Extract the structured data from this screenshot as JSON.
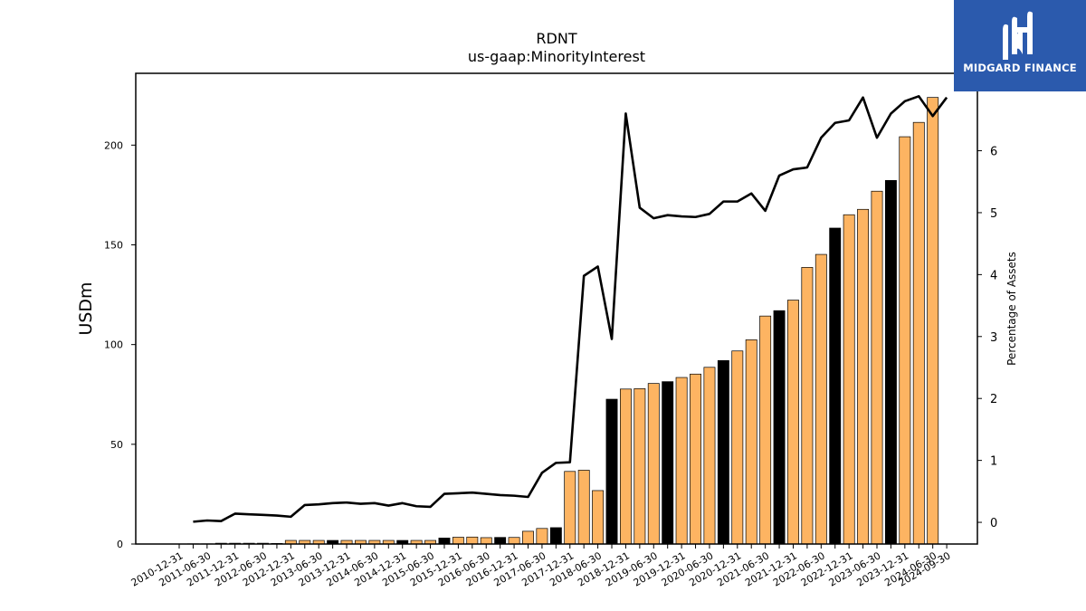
{
  "brand": {
    "name": "MIDGARD FINANCE",
    "logo_icon": "mf-monogram-icon",
    "background_color": "#2b5aad"
  },
  "chart_data": {
    "type": "bar",
    "title": "RDNT",
    "subtitle": "us-gaap:MinorityInterest",
    "ylabel": "USDm",
    "y2label": "Percentage of Assets",
    "ylim": [
      0,
      236
    ],
    "y2lim": [
      -0.35,
      7.25
    ],
    "yticks": [
      0,
      50,
      100,
      150,
      200
    ],
    "y2ticks": [
      0,
      1,
      2,
      3,
      4,
      5,
      6
    ],
    "bar_color": "#fdb462",
    "highlight_color": "#000000",
    "line_color": "#000000",
    "grid": false,
    "categories": [
      "2010-12-31",
      "2011-03-31",
      "2011-06-30",
      "2011-09-30",
      "2011-12-31",
      "2012-03-31",
      "2012-06-30",
      "2012-09-30",
      "2012-12-31",
      "2013-03-31",
      "2013-06-30",
      "2013-09-30",
      "2013-12-31",
      "2014-03-31",
      "2014-06-30",
      "2014-09-30",
      "2014-12-31",
      "2015-03-31",
      "2015-06-30",
      "2015-09-30",
      "2015-12-31",
      "2016-03-31",
      "2016-06-30",
      "2016-09-30",
      "2016-12-31",
      "2017-03-31",
      "2017-06-30",
      "2017-09-30",
      "2017-12-31",
      "2018-03-31",
      "2018-06-30",
      "2018-09-30",
      "2018-12-31",
      "2019-03-31",
      "2019-06-30",
      "2019-09-30",
      "2019-12-31",
      "2020-03-31",
      "2020-06-30",
      "2020-09-30",
      "2020-12-31",
      "2021-03-31",
      "2021-06-30",
      "2021-09-30",
      "2021-12-31",
      "2022-03-31",
      "2022-06-30",
      "2022-09-30",
      "2022-12-31",
      "2023-03-31",
      "2023-06-30",
      "2023-09-30",
      "2023-12-31",
      "2024-03-31",
      "2024-06-30",
      "2024-09-30"
    ],
    "tick_labels": [
      "2010-12-31",
      "",
      "2011-06-30",
      "",
      "2011-12-31",
      "",
      "2012-06-30",
      "",
      "2012-12-31",
      "",
      "2013-06-30",
      "",
      "2013-12-31",
      "",
      "2014-06-30",
      "",
      "2014-12-31",
      "",
      "2015-06-30",
      "",
      "2015-12-31",
      "",
      "2016-06-30",
      "",
      "2016-12-31",
      "",
      "2017-06-30",
      "",
      "2017-12-31",
      "",
      "2018-06-30",
      "",
      "2018-12-31",
      "",
      "2019-06-30",
      "",
      "2019-12-31",
      "",
      "2020-06-30",
      "",
      "2020-12-31",
      "",
      "2021-06-30",
      "",
      "2021-12-31",
      "",
      "2022-06-30",
      "",
      "2022-12-31",
      "",
      "2023-06-30",
      "",
      "2023-12-31",
      "",
      "2024-06-30",
      "2024-09-30"
    ],
    "series": [
      {
        "type": "bar",
        "values": [
          0.0,
          0.1,
          0.1,
          0.4,
          0.4,
          0.4,
          0.4,
          0.3,
          1.8,
          1.8,
          1.8,
          1.8,
          1.8,
          1.8,
          1.8,
          1.8,
          1.8,
          1.8,
          1.8,
          3.0,
          3.4,
          3.5,
          3.2,
          3.3,
          3.3,
          6.4,
          7.8,
          8.2,
          36.4,
          37.0,
          26.8,
          72.6,
          77.7,
          77.9,
          80.5,
          81.4,
          83.5,
          85.2,
          88.6,
          92.0,
          96.8,
          102.4,
          114.3,
          117.0,
          122.3,
          138.7,
          145.2,
          158.4,
          165.1,
          167.8,
          176.9,
          182.3,
          204.2,
          211.4,
          223.9,
          null
        ],
        "highlighted": [
          false,
          false,
          false,
          false,
          false,
          false,
          false,
          false,
          false,
          false,
          false,
          true,
          false,
          false,
          false,
          false,
          true,
          false,
          false,
          true,
          false,
          false,
          false,
          true,
          false,
          false,
          false,
          true,
          false,
          false,
          false,
          true,
          false,
          false,
          false,
          true,
          false,
          false,
          false,
          true,
          false,
          false,
          false,
          true,
          false,
          false,
          false,
          true,
          false,
          false,
          false,
          true,
          false,
          false,
          false,
          false
        ]
      },
      {
        "type": "line",
        "axis": "right",
        "values": [
          null,
          0.01,
          0.03,
          0.02,
          0.14,
          0.13,
          0.12,
          0.11,
          0.09,
          0.28,
          0.29,
          0.31,
          0.32,
          0.3,
          0.31,
          0.27,
          0.31,
          0.26,
          0.25,
          0.46,
          0.47,
          0.48,
          0.46,
          0.44,
          0.43,
          0.41,
          0.8,
          0.96,
          0.97,
          3.98,
          4.13,
          2.96,
          6.6,
          5.08,
          4.91,
          4.96,
          4.94,
          4.93,
          4.98,
          5.18,
          5.18,
          5.31,
          5.03,
          5.6,
          5.7,
          5.73,
          6.21,
          6.45,
          6.49,
          6.86,
          6.21,
          6.6,
          6.8,
          6.88,
          6.56,
          6.86
        ]
      }
    ]
  }
}
